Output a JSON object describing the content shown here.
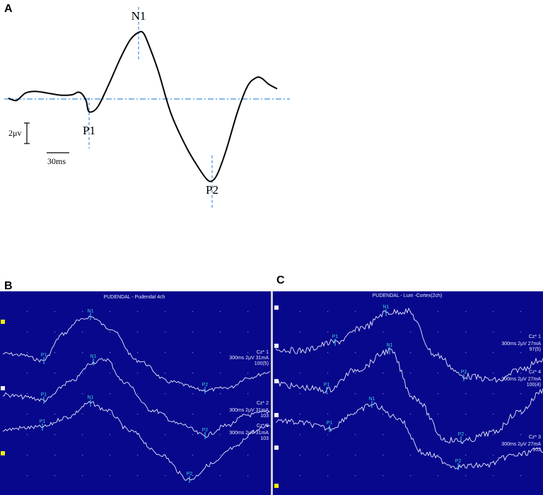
{
  "panel_letters": {
    "a": "A",
    "b": "B",
    "c": "C"
  },
  "colors": {
    "screen_bg": "#08088c",
    "trace": "#e8e8ff",
    "marker": "#3fd0e0",
    "dotgrid": "#7a7ad8",
    "axis_dash": "#3a8fdc",
    "slider": "#f2f200"
  },
  "chart_data": [
    {
      "type": "line",
      "panel": "A",
      "title": "",
      "xlabel": "",
      "ylabel": "",
      "grid": false,
      "scale": {
        "amplitude": "2μv",
        "time": "30ms"
      },
      "series": [
        {
          "x": [
            0,
            4,
            12,
            24,
            38,
            55,
            74,
            90,
            98,
            104,
            110,
            114,
            126,
            142,
            158,
            172,
            184,
            191,
            199,
            212,
            230,
            252,
            270,
            281,
            288,
            296,
            308,
            324,
            338,
            350,
            358,
            368,
            380
          ],
          "y": [
            0.2,
            -0.1,
            -0.3,
            1.4,
            1.8,
            1.4,
            0.9,
            1.0,
            1.6,
            1.2,
            -0.5,
            -3.0,
            -1.9,
            3.5,
            9.5,
            13.9,
            15.7,
            15.5,
            12.5,
            6.5,
            -3.5,
            -11.5,
            -16.5,
            -19.0,
            -19.3,
            -17.5,
            -12.0,
            -3.0,
            3.0,
            5.0,
            4.9,
            3.5,
            2.4
          ]
        }
      ],
      "peaks": [
        {
          "label": "P1",
          "x": 114,
          "y": -3.0
        },
        {
          "label": "N1",
          "x": 184,
          "y": 15.7
        },
        {
          "label": "P2",
          "x": 288,
          "y": -19.3
        }
      ]
    },
    {
      "type": "line",
      "panel": "B",
      "title": "PUDENDAL - Pudendal 4ch",
      "channels": [
        {
          "label": "Cz* 1",
          "settings": "300ms 2μV 31mA",
          "count": "100(5)"
        },
        {
          "label": "Cz* 2",
          "settings": "300ms 2μV 31mA",
          "count": "103"
        },
        {
          "label": "Cz* 3",
          "settings": "300ms 2μV 31mA",
          "count": "103"
        }
      ],
      "markers": [
        "P1",
        "N1",
        "P2"
      ]
    },
    {
      "type": "line",
      "panel": "C",
      "title": "PUDENDAL - Lum -Cortex(2ch)",
      "channels": [
        {
          "label": "Cz* 1",
          "settings": "300ms 2μV 27mA",
          "count": "97(5)"
        },
        {
          "label": "Cz* 4",
          "settings": "300ms 2μV 27mA",
          "count": "100(4)"
        },
        {
          "label": "Cz* 3",
          "settings": "300ms 2μV 27mA",
          "count": "102"
        }
      ],
      "markers": [
        "P1",
        "N1",
        "P2"
      ]
    }
  ]
}
